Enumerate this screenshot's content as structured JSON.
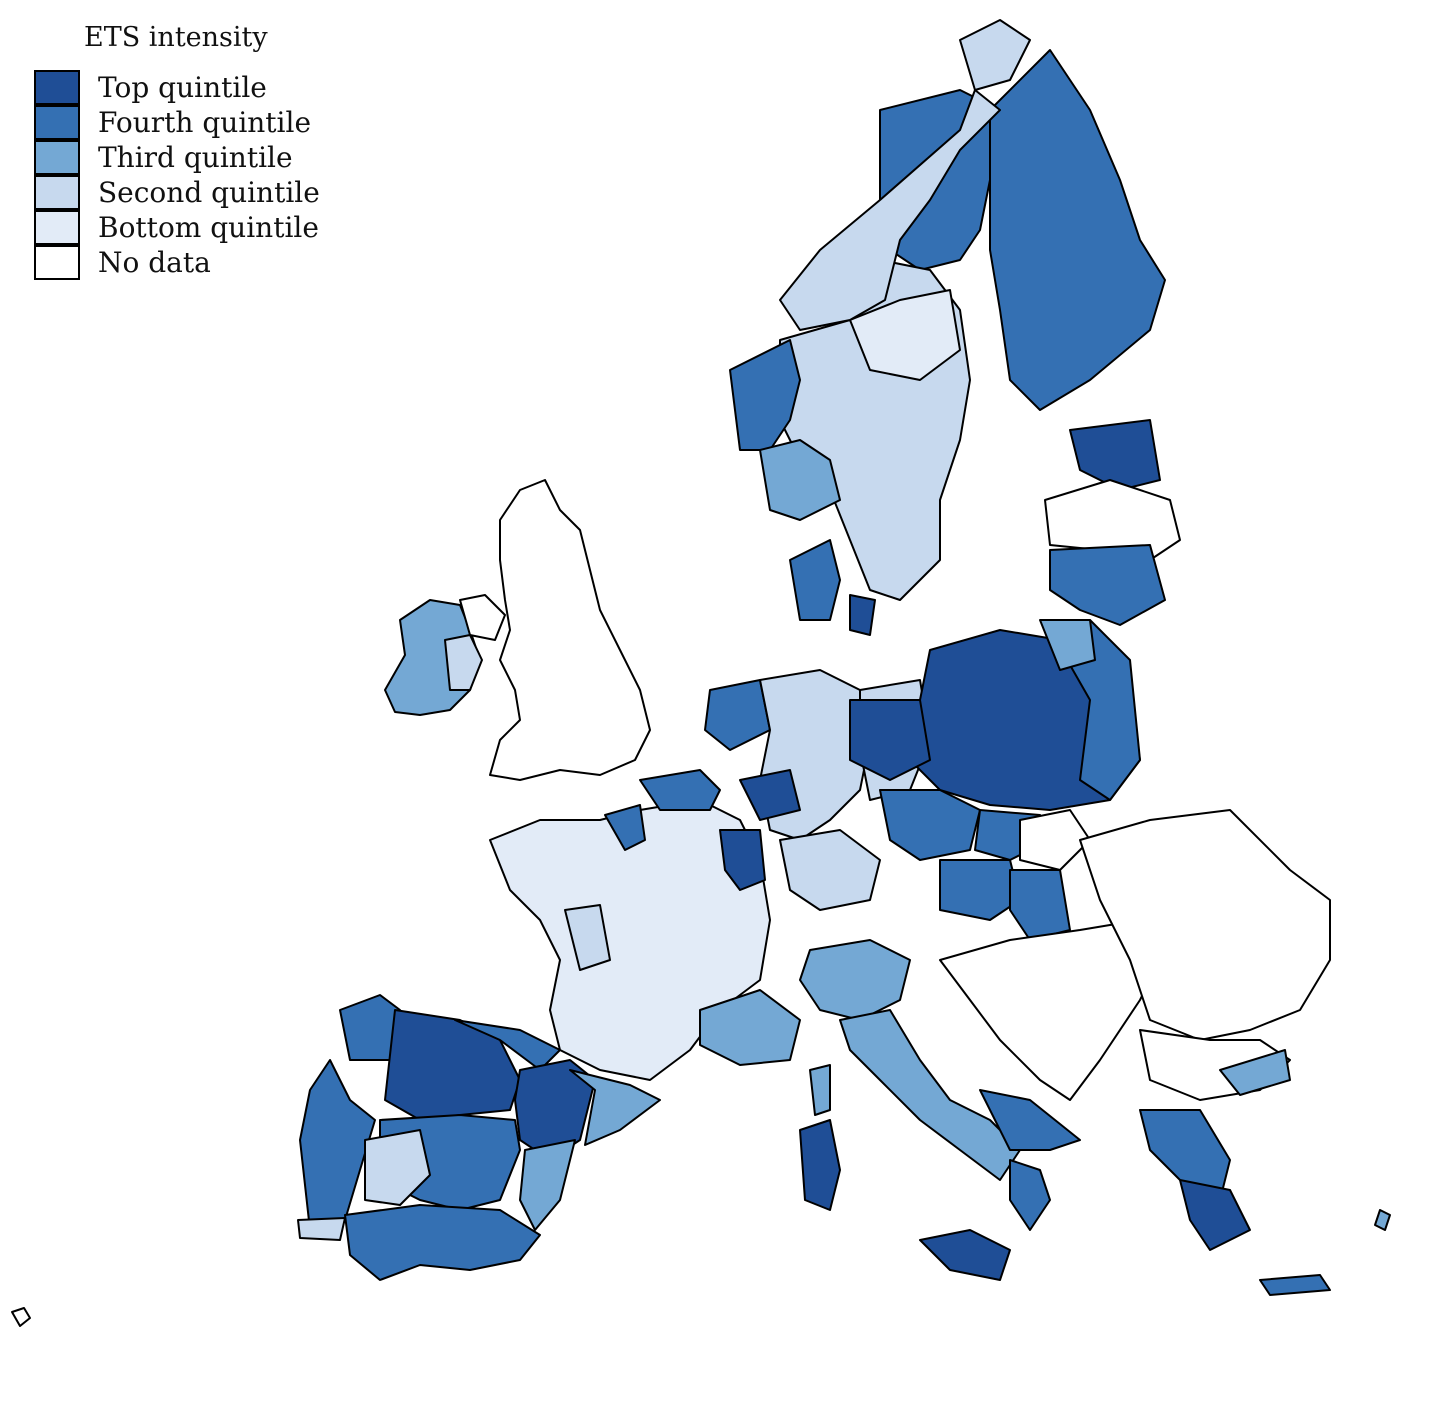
{
  "legend": {
    "title": "ETS intensity",
    "items": [
      {
        "label": "Top quintile",
        "color": "#1f4e96"
      },
      {
        "label": "Fourth quintile",
        "color": "#3470b3"
      },
      {
        "label": "Third quintile",
        "color": "#74a8d4"
      },
      {
        "label": "Second quintile",
        "color": "#c7d9ee"
      },
      {
        "label": "Bottom quintile",
        "color": "#e2ebf7"
      },
      {
        "label": "No data",
        "color": "#ffffff"
      }
    ]
  }
}
